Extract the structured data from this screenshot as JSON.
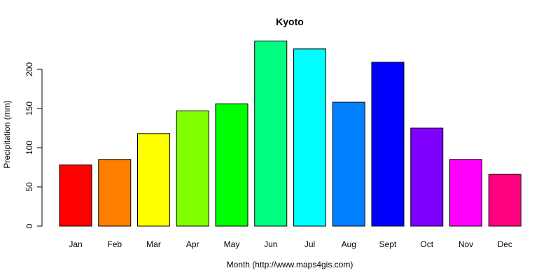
{
  "chart_data": {
    "type": "bar",
    "title": "Kyoto",
    "xlabel": "Month (http://www.maps4gis.com)",
    "ylabel": "Precipitation (mm)",
    "ylim": [
      0,
      240
    ],
    "yticks": [
      0,
      50,
      100,
      150,
      200
    ],
    "grid": false,
    "legend": "none",
    "categories": [
      "Jan",
      "Feb",
      "Mar",
      "Apr",
      "May",
      "Jun",
      "Jul",
      "Aug",
      "Sept",
      "Oct",
      "Nov",
      "Dec"
    ],
    "values": [
      78,
      85,
      118,
      147,
      156,
      236,
      226,
      158,
      209,
      125,
      85,
      66
    ],
    "colors": [
      "#FF0000",
      "#FF8000",
      "#FFFF00",
      "#80FF00",
      "#00FF00",
      "#00FF80",
      "#00FFFF",
      "#0080FF",
      "#0000FF",
      "#8000FF",
      "#FF00FF",
      "#FF0080"
    ]
  }
}
